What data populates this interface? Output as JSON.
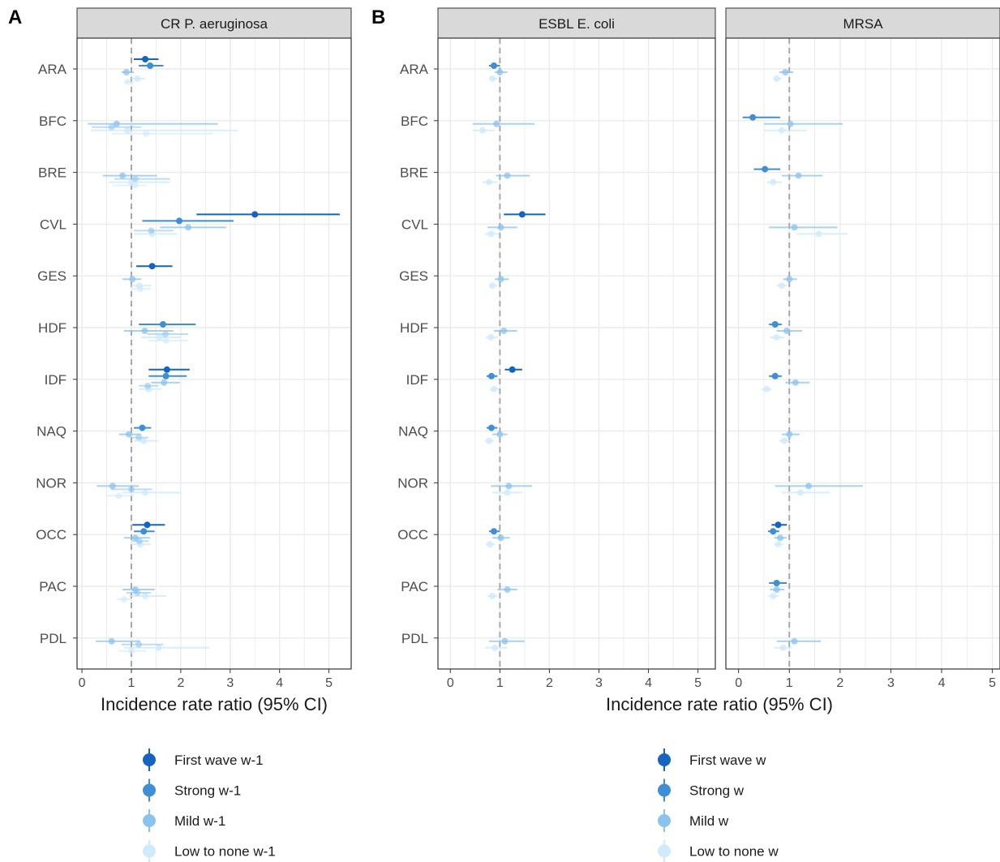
{
  "panel_labels": [
    "A",
    "B"
  ],
  "colors": {
    "first_wave": "#1565c0",
    "strong": "#3f8fd8",
    "mild": "#8ac3ee",
    "low": "#cfeafb",
    "ref_line": "#a8a8a8",
    "strip_bg": "#d9d9d9",
    "grid": "#ebebeb"
  },
  "legends": [
    {
      "items": [
        "First wave w-1",
        "Strong w-1",
        "Mild w-1",
        "Low to none w-1"
      ]
    },
    {
      "items": [
        "First wave w",
        "Strong w",
        "Mild w",
        "Low to none w"
      ]
    }
  ],
  "chart_data": [
    {
      "type": "forest",
      "panel": "A",
      "strip": "CR P. aeruginosa",
      "xlabel": "Incidence rate ratio (95% CI)",
      "xlim": [
        -0.1,
        5.45
      ],
      "xticks": [
        0,
        1,
        2,
        3,
        4,
        5
      ],
      "reference_line": 1,
      "regions": [
        "ARA",
        "BFC",
        "BRE",
        "CVL",
        "GES",
        "HDF",
        "IDF",
        "NAQ",
        "NOR",
        "OCC",
        "PAC",
        "PDL"
      ],
      "series": [
        {
          "name": "First wave w-1",
          "points": [
            {
              "region": "ARA",
              "est": 1.28,
              "lo": 1.05,
              "hi": 1.55
            },
            {
              "region": "CVL",
              "est": 3.5,
              "lo": 2.32,
              "hi": 5.22
            },
            {
              "region": "GES",
              "est": 1.42,
              "lo": 1.1,
              "hi": 1.83
            },
            {
              "region": "IDF",
              "est": 1.72,
              "lo": 1.35,
              "hi": 2.18
            },
            {
              "region": "OCC",
              "est": 1.32,
              "lo": 1.02,
              "hi": 1.68
            }
          ]
        },
        {
          "name": "Strong w-1",
          "points": [
            {
              "region": "ARA",
              "est": 1.38,
              "lo": 1.15,
              "hi": 1.65
            },
            {
              "region": "CVL",
              "est": 1.97,
              "lo": 1.22,
              "hi": 3.07
            },
            {
              "region": "HDF",
              "est": 1.64,
              "lo": 1.15,
              "hi": 2.3
            },
            {
              "region": "IDF",
              "est": 1.7,
              "lo": 1.35,
              "hi": 2.12
            },
            {
              "region": "NAQ",
              "est": 1.22,
              "lo": 1.05,
              "hi": 1.4
            },
            {
              "region": "OCC",
              "est": 1.25,
              "lo": 1.05,
              "hi": 1.47
            }
          ]
        },
        {
          "name": "Mild w-1",
          "points": [
            {
              "region": "ARA",
              "est": 0.9,
              "lo": 0.8,
              "hi": 1.05
            },
            {
              "region": "BFC",
              "est": 0.7,
              "lo": 0.12,
              "hi": 2.75
            },
            {
              "region": "BRE",
              "est": 0.82,
              "lo": 0.42,
              "hi": 1.52
            },
            {
              "region": "CVL",
              "est": 2.15,
              "lo": 1.58,
              "hi": 2.92
            },
            {
              "region": "GES",
              "est": 1.02,
              "lo": 0.82,
              "hi": 1.2
            },
            {
              "region": "HDF",
              "est": 1.27,
              "lo": 0.85,
              "hi": 1.85
            },
            {
              "region": "IDF",
              "est": 1.66,
              "lo": 1.4,
              "hi": 1.98
            },
            {
              "region": "NAQ",
              "est": 0.95,
              "lo": 0.75,
              "hi": 1.2
            },
            {
              "region": "NOR",
              "est": 0.62,
              "lo": 0.3,
              "hi": 1.15
            },
            {
              "region": "OCC",
              "est": 1.08,
              "lo": 0.85,
              "hi": 1.38
            },
            {
              "region": "PAC",
              "est": 1.08,
              "lo": 0.82,
              "hi": 1.47
            },
            {
              "region": "PDL",
              "est": 0.6,
              "lo": 0.28,
              "hi": 1.18
            }
          ]
        },
        {
          "name": "Low to none w-1",
          "points": [
            {
              "region": "ARA",
              "est": 1.12,
              "lo": 1.0,
              "hi": 1.28
            },
            {
              "region": "BFC",
              "est": 0.92,
              "lo": 0.18,
              "hi": 3.15
            },
            {
              "region": "BRE",
              "est": 1.0,
              "lo": 0.55,
              "hi": 1.78
            },
            {
              "region": "CVL",
              "est": 1.42,
              "lo": 1.05,
              "hi": 1.92
            },
            {
              "region": "GES",
              "est": 1.16,
              "lo": 1.0,
              "hi": 1.4
            },
            {
              "region": "HDF",
              "est": 1.57,
              "lo": 1.2,
              "hi": 2.0
            },
            {
              "region": "IDF",
              "est": 1.35,
              "lo": 1.15,
              "hi": 1.6
            },
            {
              "region": "NAQ",
              "est": 1.25,
              "lo": 1.05,
              "hi": 1.55
            },
            {
              "region": "NOR",
              "est": 1.28,
              "lo": 0.82,
              "hi": 2.0
            },
            {
              "region": "OCC",
              "est": 1.18,
              "lo": 1.0,
              "hi": 1.4
            },
            {
              "region": "PAC",
              "est": 1.28,
              "lo": 0.95,
              "hi": 1.7
            },
            {
              "region": "PDL",
              "est": 1.55,
              "lo": 0.85,
              "hi": 2.58
            }
          ]
        },
        {
          "name": "Mild w-1 (lower rows)",
          "points": [
            {
              "region": "BFC",
              "est": 0.6,
              "lo": 0.2,
              "hi": 1.2
            },
            {
              "region": "BRE",
              "est": 1.08,
              "lo": 0.65,
              "hi": 1.78
            },
            {
              "region": "CVL",
              "est": 1.4,
              "lo": 1.05,
              "hi": 1.85
            },
            {
              "region": "HDF",
              "est": 1.69,
              "lo": 1.32,
              "hi": 2.15
            },
            {
              "region": "IDF",
              "est": 1.33,
              "lo": 1.15,
              "hi": 1.55
            },
            {
              "region": "NAQ",
              "est": 1.15,
              "lo": 1.0,
              "hi": 1.35
            },
            {
              "region": "NOR",
              "est": 1.0,
              "lo": 0.58,
              "hi": 1.42
            },
            {
              "region": "OCC",
              "est": 1.16,
              "lo": 1.0,
              "hi": 1.35
            },
            {
              "region": "PAC",
              "est": 1.12,
              "lo": 0.9,
              "hi": 1.4
            },
            {
              "region": "PDL",
              "est": 1.15,
              "lo": 0.8,
              "hi": 1.65
            }
          ]
        },
        {
          "name": "Low to none w-1 (lower rows)",
          "points": [
            {
              "region": "ARA",
              "est": 0.93,
              "lo": 0.85,
              "hi": 1.05
            },
            {
              "region": "BFC",
              "est": 1.3,
              "lo": 0.6,
              "hi": 2.65
            },
            {
              "region": "BRE",
              "est": 1.08,
              "lo": 0.62,
              "hi": 1.3
            },
            {
              "region": "GES",
              "est": 1.18,
              "lo": 1.0,
              "hi": 1.4
            },
            {
              "region": "HDF",
              "est": 1.7,
              "lo": 1.35,
              "hi": 2.15
            },
            {
              "region": "NOR",
              "est": 0.75,
              "lo": 0.5,
              "hi": 1.05
            },
            {
              "region": "PAC",
              "est": 0.85,
              "lo": 0.7,
              "hi": 1.0
            },
            {
              "region": "PDL",
              "est": 1.0,
              "lo": 0.75,
              "hi": 1.3
            }
          ]
        }
      ]
    },
    {
      "type": "forest",
      "panel": "B",
      "strip": "ESBL E. coli",
      "xlabel": "Incidence rate ratio (95% CI)",
      "xlim": [
        -0.25,
        5.35
      ],
      "xticks": [
        0,
        1,
        2,
        3,
        4,
        5
      ],
      "reference_line": 1,
      "regions": [
        "ARA",
        "BFC",
        "BRE",
        "CVL",
        "GES",
        "HDF",
        "IDF",
        "NAQ",
        "NOR",
        "OCC",
        "PAC",
        "PDL"
      ],
      "series": [
        {
          "name": "First wave w",
          "points": [
            {
              "region": "CVL",
              "est": 1.45,
              "lo": 1.08,
              "hi": 1.92
            },
            {
              "region": "IDF",
              "est": 1.25,
              "lo": 1.1,
              "hi": 1.45
            }
          ]
        },
        {
          "name": "Strong w",
          "points": [
            {
              "region": "ARA",
              "est": 0.88,
              "lo": 0.78,
              "hi": 1.0
            },
            {
              "region": "IDF",
              "est": 0.83,
              "lo": 0.73,
              "hi": 0.95
            },
            {
              "region": "NAQ",
              "est": 0.83,
              "lo": 0.73,
              "hi": 0.95
            },
            {
              "region": "OCC",
              "est": 0.88,
              "lo": 0.78,
              "hi": 1.0
            }
          ]
        },
        {
          "name": "Mild w",
          "points": [
            {
              "region": "ARA",
              "est": 1.0,
              "lo": 0.9,
              "hi": 1.15
            },
            {
              "region": "BFC",
              "est": 0.93,
              "lo": 0.45,
              "hi": 1.7
            },
            {
              "region": "BRE",
              "est": 1.15,
              "lo": 0.92,
              "hi": 1.6
            },
            {
              "region": "CVL",
              "est": 1.02,
              "lo": 0.75,
              "hi": 1.35
            },
            {
              "region": "GES",
              "est": 1.02,
              "lo": 0.9,
              "hi": 1.18
            },
            {
              "region": "HDF",
              "est": 1.08,
              "lo": 0.88,
              "hi": 1.35
            },
            {
              "region": "NAQ",
              "est": 1.0,
              "lo": 0.85,
              "hi": 1.15
            },
            {
              "region": "NOR",
              "est": 1.18,
              "lo": 0.82,
              "hi": 1.65
            },
            {
              "region": "OCC",
              "est": 1.02,
              "lo": 0.85,
              "hi": 1.2
            },
            {
              "region": "PAC",
              "est": 1.15,
              "lo": 0.95,
              "hi": 1.35
            },
            {
              "region": "PDL",
              "est": 1.1,
              "lo": 0.78,
              "hi": 1.5
            }
          ]
        },
        {
          "name": "Low to none w",
          "points": [
            {
              "region": "ARA",
              "est": 0.85,
              "lo": 0.78,
              "hi": 0.95
            },
            {
              "region": "BFC",
              "est": 0.65,
              "lo": 0.45,
              "hi": 0.9
            },
            {
              "region": "BRE",
              "est": 0.78,
              "lo": 0.65,
              "hi": 0.95
            },
            {
              "region": "CVL",
              "est": 0.82,
              "lo": 0.7,
              "hi": 0.98
            },
            {
              "region": "GES",
              "est": 0.85,
              "lo": 0.78,
              "hi": 0.95
            },
            {
              "region": "HDF",
              "est": 0.82,
              "lo": 0.72,
              "hi": 0.95
            },
            {
              "region": "IDF",
              "est": 0.88,
              "lo": 0.8,
              "hi": 0.98
            },
            {
              "region": "NAQ",
              "est": 0.78,
              "lo": 0.7,
              "hi": 0.88
            },
            {
              "region": "NOR",
              "est": 1.15,
              "lo": 0.85,
              "hi": 1.45
            },
            {
              "region": "OCC",
              "est": 0.8,
              "lo": 0.72,
              "hi": 0.9
            },
            {
              "region": "PAC",
              "est": 0.85,
              "lo": 0.75,
              "hi": 0.95
            },
            {
              "region": "PDL",
              "est": 0.9,
              "lo": 0.7,
              "hi": 1.15
            }
          ]
        }
      ]
    },
    {
      "type": "forest",
      "panel": "B",
      "strip": "MRSA",
      "xlabel": "Incidence rate ratio (95% CI)",
      "xlim": [
        -0.25,
        5.15
      ],
      "xticks": [
        0,
        1,
        2,
        3,
        4,
        5
      ],
      "reference_line": 1,
      "regions": [
        "ARA",
        "BFC",
        "BRE",
        "CVL",
        "GES",
        "HDF",
        "IDF",
        "NAQ",
        "NOR",
        "OCC",
        "PAC",
        "PDL"
      ],
      "series": [
        {
          "name": "First wave w",
          "points": [
            {
              "region": "OCC",
              "est": 0.78,
              "lo": 0.65,
              "hi": 0.95
            }
          ]
        },
        {
          "name": "Strong w",
          "points": [
            {
              "region": "BFC",
              "est": 0.28,
              "lo": 0.08,
              "hi": 0.82
            },
            {
              "region": "BRE",
              "est": 0.52,
              "lo": 0.3,
              "hi": 0.82
            },
            {
              "region": "OCC",
              "est": 0.68,
              "lo": 0.58,
              "hi": 0.8
            },
            {
              "region": "PAC",
              "est": 0.75,
              "lo": 0.6,
              "hi": 0.95
            },
            {
              "region": "IDF",
              "est": 0.72,
              "lo": 0.6,
              "hi": 0.85
            },
            {
              "region": "HDF",
              "est": 0.72,
              "lo": 0.6,
              "hi": 0.85
            }
          ]
        },
        {
          "name": "Mild w",
          "points": [
            {
              "region": "ARA",
              "est": 0.92,
              "lo": 0.8,
              "hi": 1.08
            },
            {
              "region": "BFC",
              "est": 1.02,
              "lo": 0.5,
              "hi": 2.05
            },
            {
              "region": "BRE",
              "est": 1.18,
              "lo": 0.85,
              "hi": 1.65
            },
            {
              "region": "CVL",
              "est": 1.1,
              "lo": 0.6,
              "hi": 1.95
            },
            {
              "region": "GES",
              "est": 1.0,
              "lo": 0.88,
              "hi": 1.15
            },
            {
              "region": "HDF",
              "est": 0.95,
              "lo": 0.75,
              "hi": 1.25
            },
            {
              "region": "IDF",
              "est": 1.12,
              "lo": 0.92,
              "hi": 1.4
            },
            {
              "region": "NAQ",
              "est": 1.0,
              "lo": 0.85,
              "hi": 1.2
            },
            {
              "region": "NOR",
              "est": 1.38,
              "lo": 0.72,
              "hi": 2.45
            },
            {
              "region": "OCC",
              "est": 0.82,
              "lo": 0.7,
              "hi": 0.95
            },
            {
              "region": "PAC",
              "est": 0.75,
              "lo": 0.62,
              "hi": 0.9
            },
            {
              "region": "PDL",
              "est": 1.1,
              "lo": 0.75,
              "hi": 1.62
            }
          ]
        },
        {
          "name": "Low to none w",
          "points": [
            {
              "region": "ARA",
              "est": 0.75,
              "lo": 0.68,
              "hi": 0.85
            },
            {
              "region": "BFC",
              "est": 0.85,
              "lo": 0.5,
              "hi": 1.35
            },
            {
              "region": "BRE",
              "est": 0.68,
              "lo": 0.55,
              "hi": 0.85
            },
            {
              "region": "CVL",
              "est": 1.58,
              "lo": 1.15,
              "hi": 2.15
            },
            {
              "region": "GES",
              "est": 0.85,
              "lo": 0.75,
              "hi": 0.95
            },
            {
              "region": "HDF",
              "est": 0.75,
              "lo": 0.62,
              "hi": 0.9
            },
            {
              "region": "IDF",
              "est": 0.55,
              "lo": 0.45,
              "hi": 0.65
            },
            {
              "region": "NAQ",
              "est": 0.9,
              "lo": 0.8,
              "hi": 1.02
            },
            {
              "region": "NOR",
              "est": 1.22,
              "lo": 0.85,
              "hi": 1.8
            },
            {
              "region": "OCC",
              "est": 0.78,
              "lo": 0.7,
              "hi": 0.88
            },
            {
              "region": "PAC",
              "est": 0.68,
              "lo": 0.58,
              "hi": 0.8
            },
            {
              "region": "PDL",
              "est": 0.88,
              "lo": 0.7,
              "hi": 1.05
            }
          ]
        }
      ]
    }
  ]
}
